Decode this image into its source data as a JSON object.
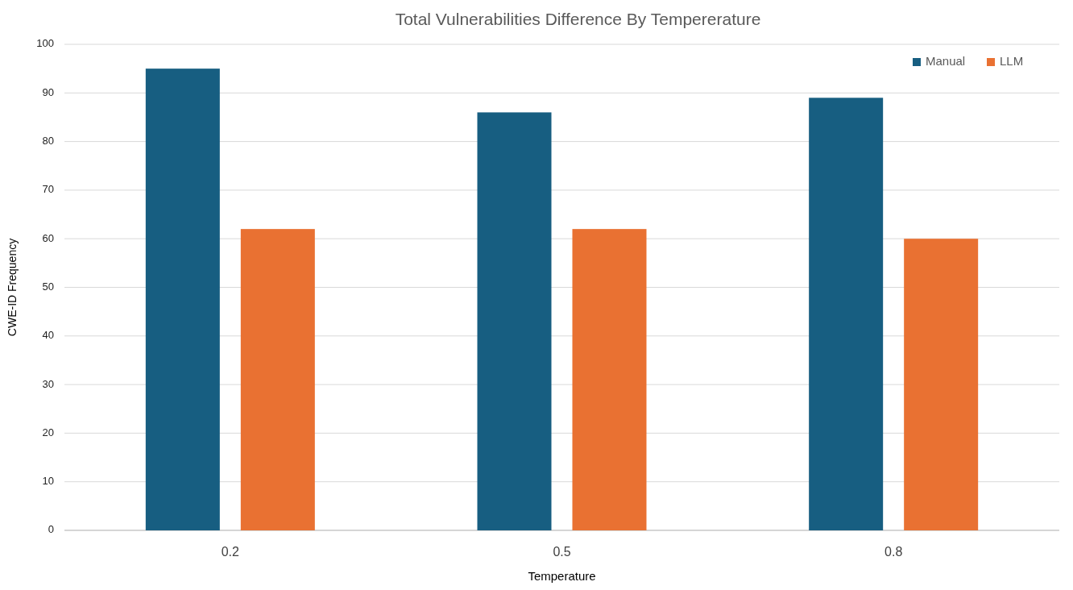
{
  "chart_data": {
    "type": "bar",
    "title": "Total Vulnerabilities Difference By Tempererature",
    "xlabel": "Temperature",
    "ylabel": "CWE-ID Frequency",
    "categories": [
      "0.2",
      "0.5",
      "0.8"
    ],
    "series": [
      {
        "name": "Manual",
        "color": "#175e81",
        "values": [
          95,
          86,
          89
        ]
      },
      {
        "name": "LLM",
        "color": "#e97132",
        "values": [
          62,
          62,
          60
        ]
      }
    ],
    "ylim": [
      0,
      100
    ],
    "yticks": [
      0,
      10,
      20,
      30,
      40,
      50,
      60,
      70,
      80,
      90,
      100
    ],
    "grid": "y",
    "legend": "top right"
  }
}
